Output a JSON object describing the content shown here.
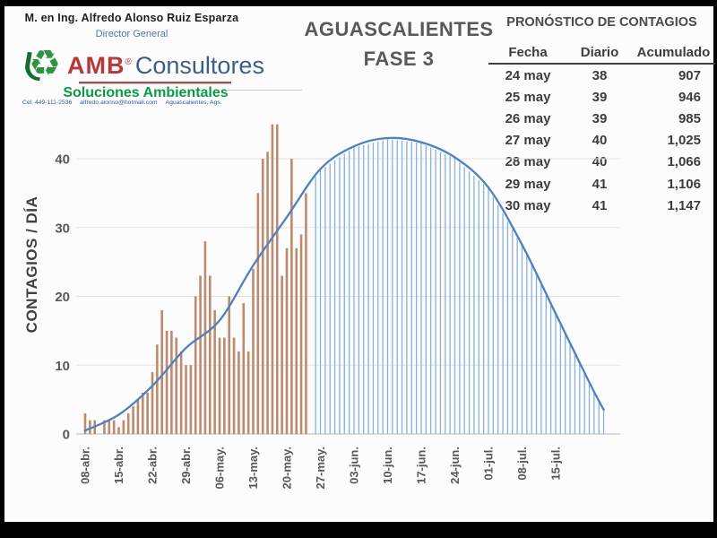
{
  "header": {
    "name": "M. en Ing. Alfredo Alonso Ruiz Esparza",
    "role": "Director General",
    "brand_amb": "AMB",
    "brand_reg": "®",
    "brand_consultores": "Consultores",
    "tagline": "Soluciones Ambientales",
    "contact_phone": "Cel. 449-111-2536",
    "contact_email": "alfredo.alonso@hotmail.com",
    "contact_city": "Aguascalientes, Ags."
  },
  "title": {
    "line1": "AGUASCALIENTES",
    "line2": "FASE 3"
  },
  "forecast_table": {
    "title": "PRONÓSTICO DE CONTAGIOS",
    "columns": [
      "Fecha",
      "Diario",
      "Acumulado"
    ],
    "rows": [
      [
        "24 may",
        "38",
        "907"
      ],
      [
        "25 may",
        "39",
        "946"
      ],
      [
        "26 may",
        "39",
        "985"
      ],
      [
        "27 may",
        "40",
        "1,025"
      ],
      [
        "28 may",
        "40",
        "1,066"
      ],
      [
        "29 may",
        "41",
        "1,106"
      ],
      [
        "30 may",
        "41",
        "1,147"
      ]
    ]
  },
  "chart_data": {
    "type": "bar",
    "ylabel": "CONTAGIOS / DÍA",
    "ylim": [
      0,
      46
    ],
    "grid": true,
    "y_ticks": [
      0,
      10,
      20,
      30,
      40
    ],
    "x_tick_days": [
      0,
      7,
      14,
      21,
      28,
      35,
      42,
      49,
      56,
      63,
      70,
      77,
      84,
      91,
      98
    ],
    "x_tick_labels": [
      "08-abr.",
      "15-abr.",
      "22-abr.",
      "29-abr.",
      "06-may.",
      "13-may.",
      "20-may.",
      "27-may.",
      "03-jun.",
      "10-jun.",
      "17-jun.",
      "24-jun.",
      "01-jul.",
      "08-jul.",
      "15-jul."
    ],
    "series": [
      {
        "name": "contagios-diarios-observados",
        "type": "bar",
        "color": "#bd8a6e",
        "start_day": 0,
        "values": [
          3,
          2,
          2,
          0,
          2,
          2,
          2,
          1,
          2,
          3,
          4,
          5,
          6,
          6,
          9,
          13,
          18,
          15,
          15,
          14,
          12,
          10,
          10,
          20,
          23,
          28,
          23,
          18,
          14,
          14,
          20,
          14,
          12,
          19,
          12,
          24,
          35,
          40,
          41,
          45,
          45,
          23,
          27,
          40,
          27,
          29,
          35
        ]
      },
      {
        "name": "pronostico-curva",
        "type": "line",
        "color": "#4e81bd",
        "points": [
          [
            0,
            0.5
          ],
          [
            7,
            2.8
          ],
          [
            14,
            7
          ],
          [
            21,
            12.5
          ],
          [
            28,
            16.5
          ],
          [
            35,
            24.5
          ],
          [
            42,
            31.5
          ],
          [
            49,
            38.5
          ],
          [
            56,
            41.8
          ],
          [
            63,
            43
          ],
          [
            70,
            42.4
          ],
          [
            77,
            40.2
          ],
          [
            84,
            35.8
          ],
          [
            91,
            27.5
          ],
          [
            98,
            17.5
          ],
          [
            105,
            7.5
          ],
          [
            108,
            3.5
          ]
        ]
      },
      {
        "name": "pronostico-diario-agujas",
        "type": "needles",
        "color": "#8cb1d8",
        "start_day": 48,
        "end_day": 108
      }
    ],
    "peak": {
      "day_label": "10-jun.",
      "value": 43
    }
  },
  "colors": {
    "background": "#000000",
    "slide": "#fcfcfc",
    "title_text": "#595959",
    "axis_text": "#595959",
    "table_text": "#3d3d3d",
    "brand_red": "#b5393c",
    "brand_blue": "#3c5f86",
    "brand_green": "#0a9a44",
    "bar": "#bd8a6e",
    "curve": "#4e81bd",
    "needles": "#8cb1d8",
    "gridline": "#e2e2e2"
  }
}
